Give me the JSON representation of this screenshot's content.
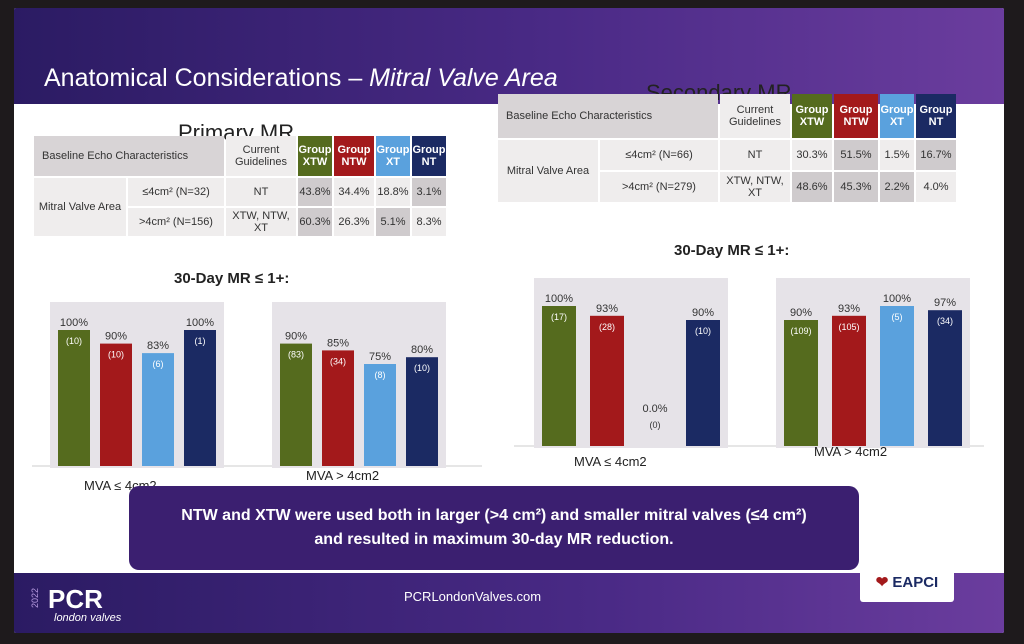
{
  "slide": {
    "title_main": "Anatomical Considerations – ",
    "title_italic": "Mitral Valve Area",
    "primary_title": "Primary MR",
    "secondary_title": "Secondary MR",
    "callout_line1": "NTW and XTW were used both in larger (>4 cm²) and smaller mitral valves (≤4 cm²)",
    "callout_line2": "and resulted in maximum 30-day MR reduction.",
    "footer_url": "PCRLondonValves.com",
    "logo_text": "PCR",
    "logo_sub": "london valves",
    "logo_year": "2022",
    "eapci_text": "EAPCI"
  },
  "primary_table": {
    "header_base": "Baseline Echo Characteristics",
    "header_guidelines": "Current Guidelines",
    "groups": [
      "Group XTW",
      "Group NTW",
      "Group XT",
      "Group NT"
    ],
    "row_label": "Mitral Valve Area",
    "rows": [
      {
        "subgroup": "≤4cm² (N=32)",
        "guideline": "NT",
        "values": [
          "43.8%",
          "34.4%",
          "18.8%",
          "3.1%"
        ]
      },
      {
        "subgroup": ">4cm² (N=156)",
        "guideline": "XTW, NTW, XT",
        "values": [
          "60.3%",
          "26.3%",
          "5.1%",
          "8.3%"
        ]
      }
    ]
  },
  "secondary_table": {
    "header_base": "Baseline Echo Characteristics",
    "header_guidelines": "Current Guidelines",
    "groups": [
      "Group XTW",
      "Group NTW",
      "Group XT",
      "Group NT"
    ],
    "row_label": "Mitral Valve Area",
    "rows": [
      {
        "subgroup": "≤4cm² (N=66)",
        "guideline": "NT",
        "values": [
          "30.3%",
          "51.5%",
          "1.5%",
          "16.7%"
        ]
      },
      {
        "subgroup": ">4cm² (N=279)",
        "guideline": "XTW, NTW, XT",
        "values": [
          "48.6%",
          "45.3%",
          "2.2%",
          "4.0%"
        ]
      }
    ]
  },
  "colors": {
    "XTW": "#556b1e",
    "NTW": "#a3191b",
    "XT": "#5aa1dd",
    "NT": "#1b2a63"
  },
  "chart_data": [
    {
      "type": "bar",
      "title": "30-Day MR ≤ 1+:",
      "categories": [
        "MVA ≤ 4cm2",
        "MVA > 4cm2"
      ],
      "series": [
        {
          "group": "XTW",
          "values": [
            100,
            90
          ],
          "counts": [
            "(10)",
            "(83)"
          ]
        },
        {
          "group": "NTW",
          "values": [
            90,
            85
          ],
          "counts": [
            "(10)",
            "(34)"
          ]
        },
        {
          "group": "XT",
          "values": [
            83,
            75
          ],
          "counts": [
            "(6)",
            "(8)"
          ]
        },
        {
          "group": "NT",
          "values": [
            100,
            80
          ],
          "counts": [
            "(1)",
            "(10)"
          ]
        }
      ],
      "ylim": [
        0,
        100
      ]
    },
    {
      "type": "bar",
      "title": "30-Day MR ≤ 1+:",
      "categories": [
        "MVA ≤ 4cm2",
        "MVA > 4cm2"
      ],
      "series": [
        {
          "group": "XTW",
          "values": [
            100,
            90
          ],
          "counts": [
            "(17)",
            "(109)"
          ]
        },
        {
          "group": "NTW",
          "values": [
            93,
            93
          ],
          "counts": [
            "(28)",
            "(105)"
          ]
        },
        {
          "group": "XT",
          "values": [
            0.0,
            100
          ],
          "counts": [
            "(0)",
            "(5)"
          ]
        },
        {
          "group": "NT",
          "values": [
            90,
            97
          ],
          "counts": [
            "(10)",
            "(34)"
          ]
        }
      ],
      "labels": [
        [
          "100%",
          "93%",
          "0.0%",
          "90%"
        ],
        [
          "90%",
          "93%",
          "100%",
          "97%"
        ]
      ],
      "ylim": [
        0,
        100
      ]
    }
  ],
  "primary_labels": [
    [
      "100%",
      "90%",
      "83%",
      "100%"
    ],
    [
      "90%",
      "85%",
      "75%",
      "80%"
    ]
  ]
}
